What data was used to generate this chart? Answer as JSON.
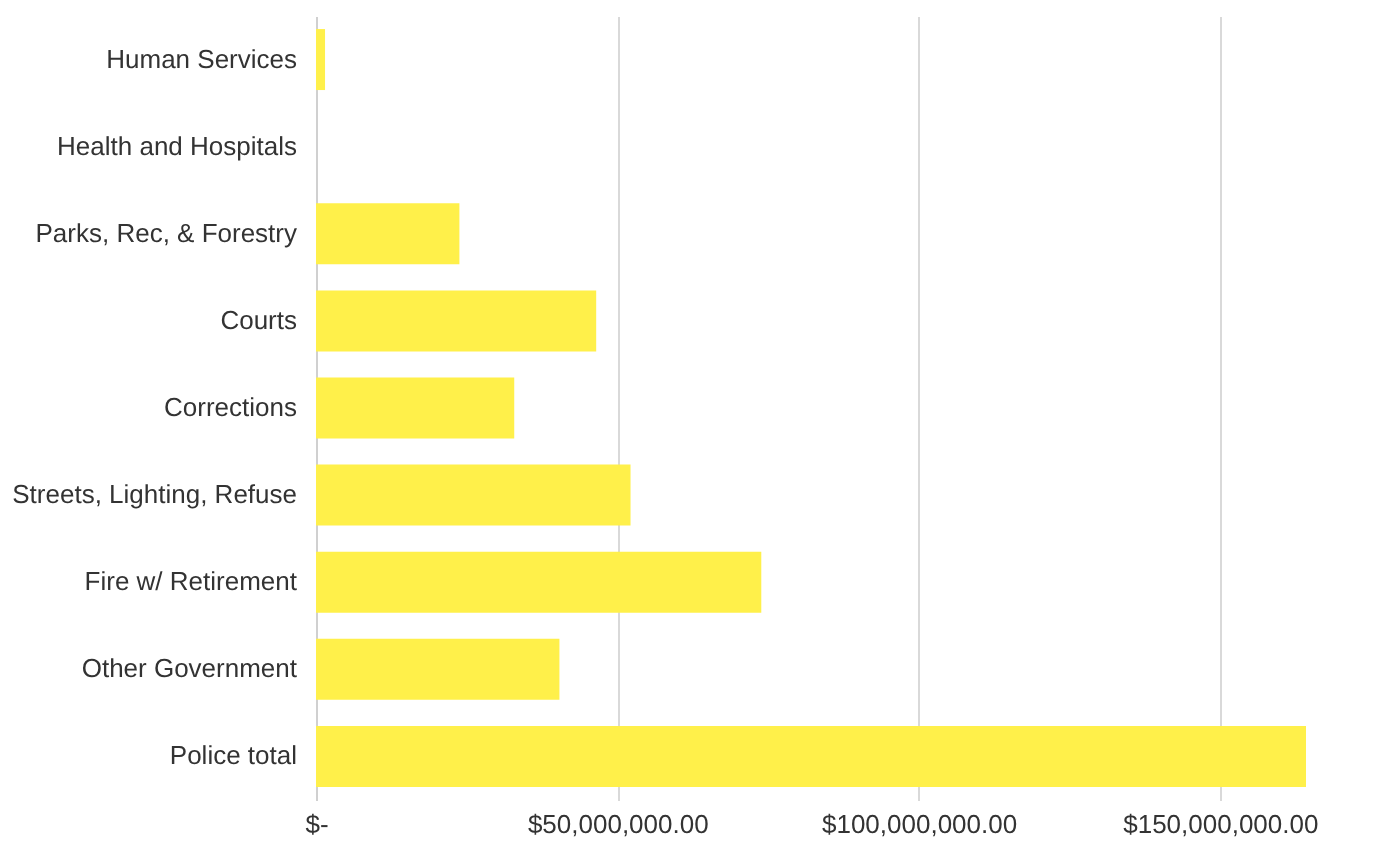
{
  "chart_data": {
    "type": "bar",
    "orientation": "horizontal",
    "categories": [
      "Human Services",
      "Health and Hospitals",
      "Parks, Rec, & Forestry",
      "Courts",
      "Corrections",
      "Streets, Lighting, Refuse",
      "Fire w/ Retirement",
      "Other Government",
      "Police total"
    ],
    "values": [
      1500000,
      0,
      23800000,
      46500000,
      32900000,
      52200000,
      73900000,
      40400000,
      164300000
    ],
    "color": "#fff04a",
    "xlim": [
      0,
      164300000
    ],
    "xticks": [
      {
        "value": 0,
        "label": "$-"
      },
      {
        "value": 50000000,
        "label": "$50,000,000.00"
      },
      {
        "value": 100000000,
        "label": "$100,000,000.00"
      },
      {
        "value": 150000000,
        "label": "$150,000,000.00"
      }
    ],
    "grid": "x"
  }
}
